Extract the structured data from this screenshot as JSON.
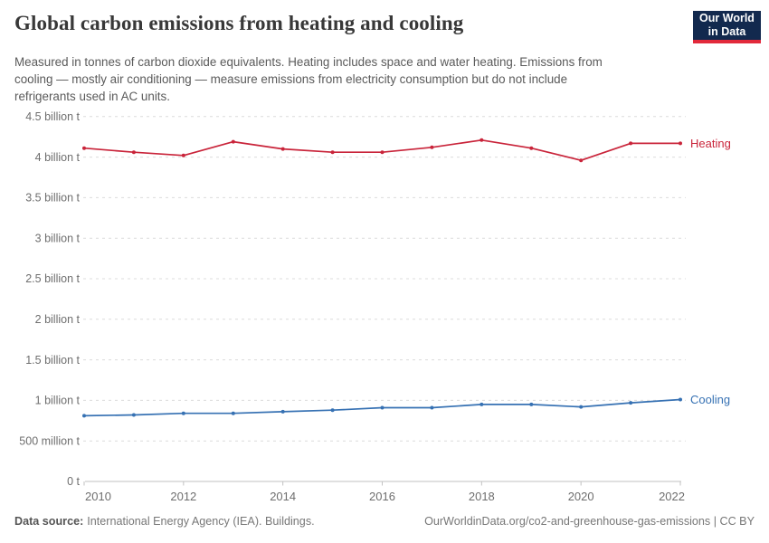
{
  "header": {
    "title": "Global carbon emissions from heating and cooling",
    "subtitle_lines": [
      "Measured in tonnes of carbon dioxide equivalents. Heating includes space and water heating. Emissions from",
      "cooling — mostly air conditioning — measure emissions from electricity consumption but do not include",
      "refrigerants used in AC units."
    ]
  },
  "logo": {
    "line1": "Our World",
    "line2": "in Data",
    "bg_color": "#12294e",
    "stripe_color": "#e2293b"
  },
  "chart_data": {
    "type": "line",
    "title": "Global carbon emissions from heating and cooling",
    "unit": "tonnes of carbon dioxide equivalents (billions)",
    "x": [
      2010,
      2011,
      2012,
      2013,
      2014,
      2015,
      2016,
      2017,
      2018,
      2019,
      2020,
      2021,
      2022
    ],
    "series": [
      {
        "name": "Heating",
        "color": "#c9243a",
        "values": [
          4.11,
          4.06,
          4.02,
          4.19,
          4.1,
          4.06,
          4.06,
          4.12,
          4.21,
          4.11,
          3.96,
          4.17,
          4.17
        ]
      },
      {
        "name": "Cooling",
        "color": "#3671b3",
        "values": [
          0.81,
          0.82,
          0.84,
          0.84,
          0.86,
          0.88,
          0.91,
          0.91,
          0.95,
          0.95,
          0.92,
          0.97,
          1.01
        ]
      }
    ],
    "ylim": [
      0,
      4.5
    ],
    "yticks": [
      {
        "value": 0,
        "label": "0 t"
      },
      {
        "value": 0.5,
        "label": "500 million t"
      },
      {
        "value": 1,
        "label": "1 billion t"
      },
      {
        "value": 1.5,
        "label": "1.5 billion t"
      },
      {
        "value": 2,
        "label": "2 billion t"
      },
      {
        "value": 2.5,
        "label": "2.5 billion t"
      },
      {
        "value": 3,
        "label": "3 billion t"
      },
      {
        "value": 3.5,
        "label": "3.5 billion t"
      },
      {
        "value": 4,
        "label": "4 billion t"
      },
      {
        "value": 4.5,
        "label": "4.5 billion t"
      }
    ],
    "xticks": [
      2010,
      2012,
      2014,
      2016,
      2018,
      2020,
      2022
    ],
    "grid": "dashed horizontal",
    "legend": "line-end labels"
  },
  "footer": {
    "datasource_label": "Data source:",
    "datasource_text": "International Energy Agency (IEA). Buildings.",
    "credit_text": "OurWorldinData.org/co2-and-greenhouse-gas-emissions | CC BY"
  }
}
